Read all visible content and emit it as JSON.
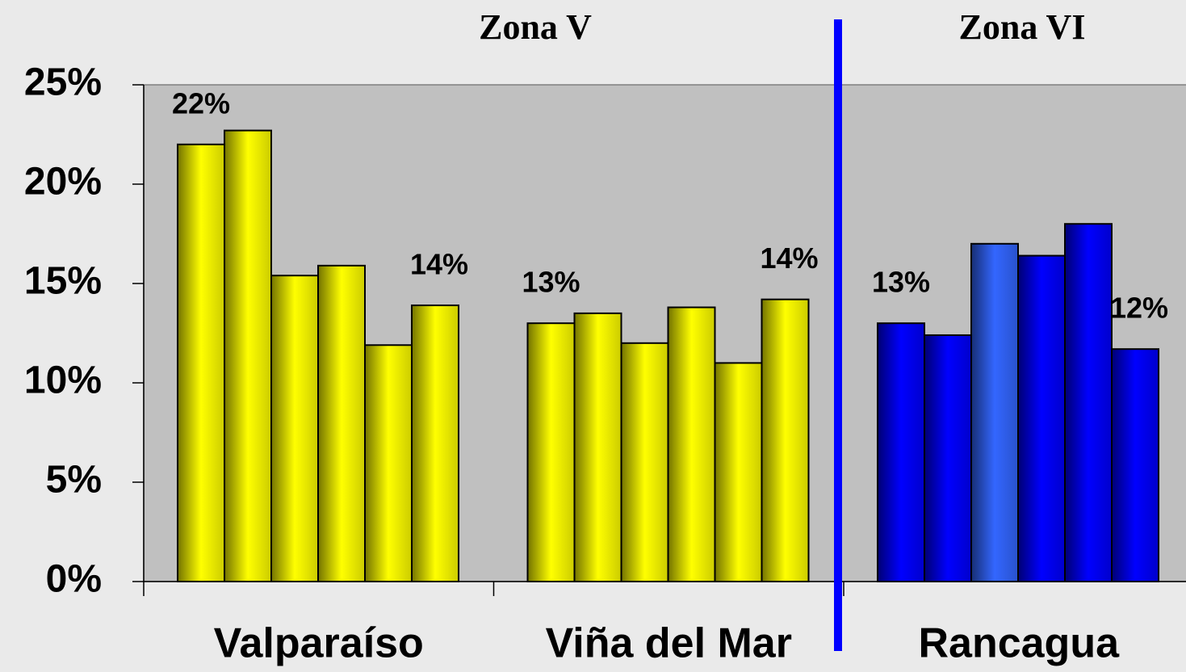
{
  "chart_data": {
    "type": "bar",
    "categories": [
      "Valparaíso",
      "Viña del Mar",
      "Rancagua"
    ],
    "annotations": [
      {
        "text": "Zona V"
      },
      {
        "text": "Zona VI"
      }
    ],
    "series": [
      {
        "values": [
          22.0,
          13.0,
          13.0
        ],
        "value_labels": [
          "22%",
          "13%",
          "13%"
        ],
        "colors": [
          "#ffff00",
          "#ffff00",
          "#0000ff"
        ]
      },
      {
        "values": [
          22.7,
          13.5,
          12.4
        ],
        "colors": [
          "#ffff00",
          "#ffff00",
          "#0000ff"
        ]
      },
      {
        "values": [
          15.4,
          12.0,
          17.0
        ],
        "colors": [
          "#ffff00",
          "#ffff00",
          "#3366ff"
        ]
      },
      {
        "values": [
          15.9,
          13.8,
          16.4
        ],
        "colors": [
          "#ffff00",
          "#ffff00",
          "#0000ff"
        ]
      },
      {
        "values": [
          11.9,
          11.0,
          18.0
        ],
        "colors": [
          "#ffff00",
          "#ffff00",
          "#0000ff"
        ]
      },
      {
        "values": [
          13.9,
          14.2,
          11.7
        ],
        "value_labels": [
          "14%",
          "14%",
          "12%"
        ],
        "colors": [
          "#ffff00",
          "#ffff00",
          "#0000ff"
        ]
      }
    ],
    "ylim": [
      0,
      25
    ],
    "yticks": [
      {
        "value": 0,
        "label": "0%"
      },
      {
        "value": 5,
        "label": "5%"
      },
      {
        "value": 10,
        "label": "10%"
      },
      {
        "value": 15,
        "label": "15%"
      },
      {
        "value": 20,
        "label": "20%"
      },
      {
        "value": 25,
        "label": "25%"
      }
    ],
    "grid": false
  }
}
